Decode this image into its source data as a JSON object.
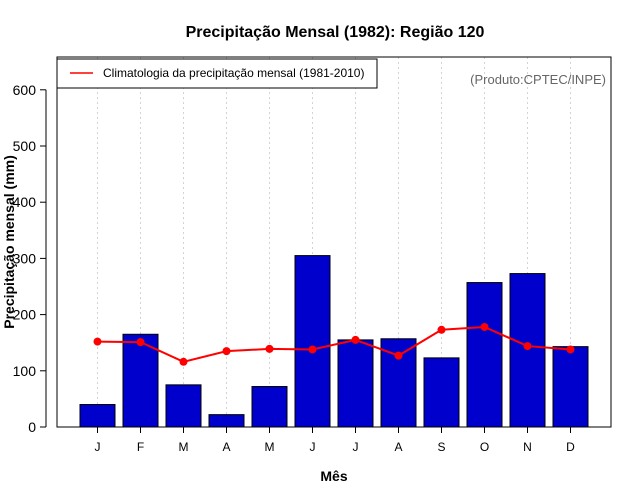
{
  "chart_data": {
    "type": "bar",
    "title": "Precipitação Mensal (1982): Região 120",
    "xlabel": "Mês",
    "ylabel": "Precipitação mensal (mm)",
    "categories": [
      "J",
      "F",
      "M",
      "A",
      "M",
      "J",
      "J",
      "A",
      "S",
      "O",
      "N",
      "D"
    ],
    "ylim": [
      0,
      650
    ],
    "yticks": [
      0,
      100,
      200,
      300,
      400,
      500,
      600
    ],
    "grid": "vertical dotted",
    "series": [
      {
        "name": "Precipitação mensal (1982)",
        "type": "bar",
        "color": "#0000cc",
        "values": [
          40,
          165,
          75,
          22,
          72,
          305,
          155,
          157,
          123,
          257,
          273,
          143
        ]
      },
      {
        "name": "Climatologia da precipitação mensal (1981-2010)",
        "type": "line",
        "color": "#ff0000",
        "values": [
          152,
          151,
          116,
          135,
          139,
          138,
          155,
          127,
          173,
          178,
          144,
          138
        ]
      }
    ],
    "legend": {
      "position": "top-left",
      "label": "Climatologia da precipitação mensal (1981-2010)"
    },
    "source_note": "(Produto:CPTEC/INPE)"
  }
}
